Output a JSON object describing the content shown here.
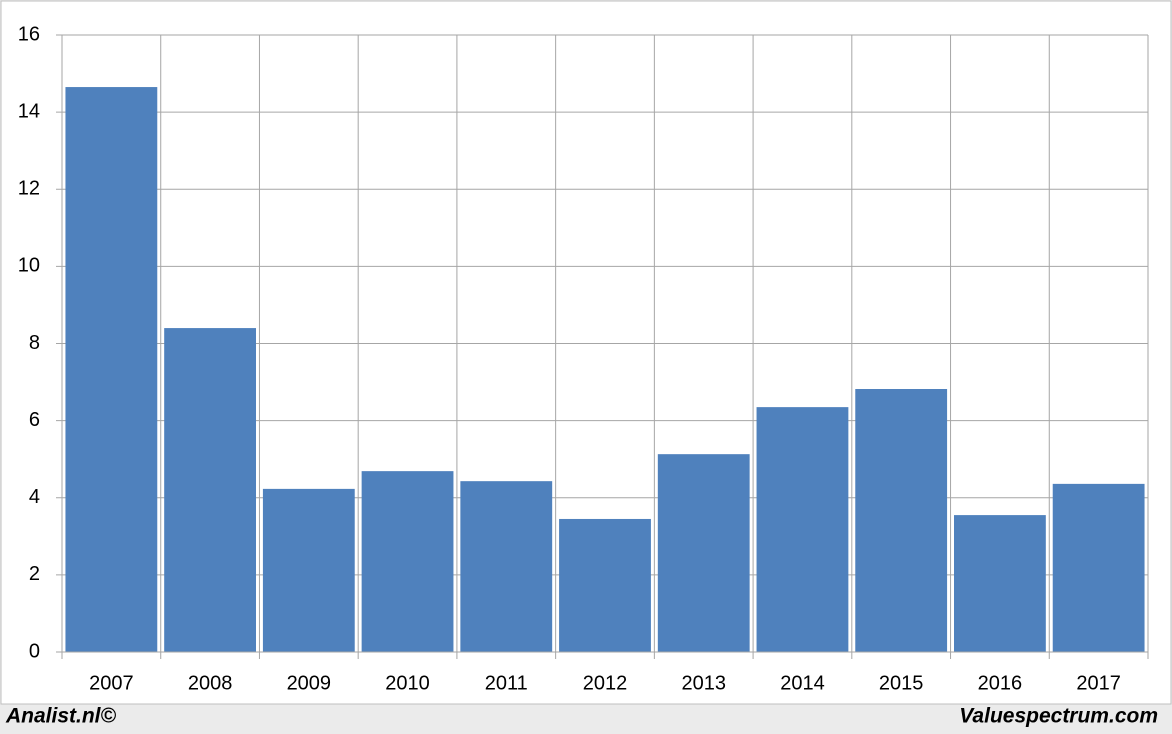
{
  "chart_data": {
    "type": "bar",
    "categories": [
      "2007",
      "2008",
      "2009",
      "2010",
      "2011",
      "2012",
      "2013",
      "2014",
      "2015",
      "2016",
      "2017"
    ],
    "values": [
      14.65,
      8.4,
      4.23,
      4.69,
      4.43,
      3.45,
      5.13,
      6.35,
      6.82,
      3.55,
      4.36
    ],
    "color": "#4f81bd",
    "ylim": [
      0,
      16
    ],
    "yticks": [
      0,
      2,
      4,
      6,
      8,
      10,
      12,
      14,
      16
    ],
    "grid": true
  },
  "footer": {
    "left": "Analist.nl©",
    "right": "Valuespectrum.com"
  }
}
